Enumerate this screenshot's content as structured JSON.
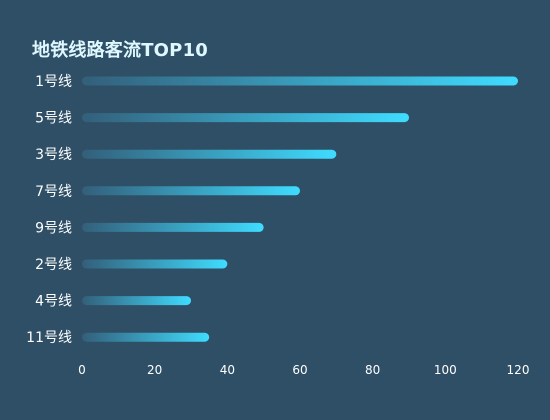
{
  "chart_data": {
    "type": "bar",
    "orientation": "horizontal",
    "title": "地铁线路客流TOP10",
    "categories": [
      "1号线",
      "5号线",
      "3号线",
      "7号线",
      "9号线",
      "2号线",
      "4号线",
      "11号线"
    ],
    "values": [
      120,
      90,
      70,
      60,
      50,
      40,
      30,
      35
    ],
    "xlim": [
      0,
      120
    ],
    "xticks": [
      0,
      20,
      40,
      60,
      80,
      100,
      120
    ],
    "grid": false,
    "legend": "none",
    "colors": {
      "background": "#2f4f66",
      "bar_start": "#335f7a",
      "bar_end": "#3fdcff",
      "text": "#ffffff",
      "title": "#dff8ff"
    }
  }
}
